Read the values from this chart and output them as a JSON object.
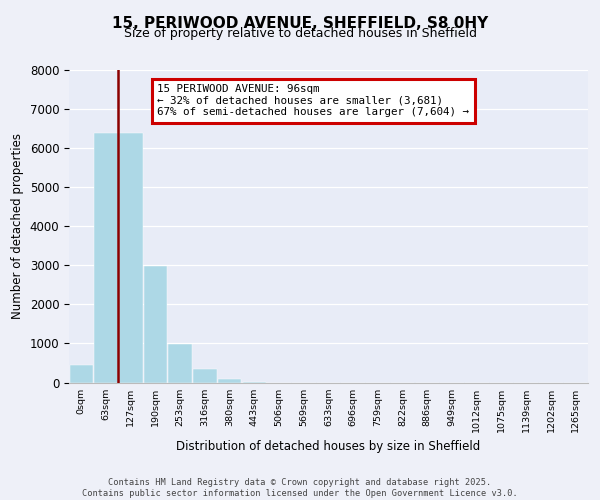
{
  "title_line1": "15, PERIWOOD AVENUE, SHEFFIELD, S8 0HY",
  "title_line2": "Size of property relative to detached houses in Sheffield",
  "xlabel": "Distribution of detached houses by size in Sheffield",
  "ylabel": "Number of detached properties",
  "bar_color": "#add8e6",
  "vline_color": "#8b0000",
  "vline_x": 1.5,
  "annotation_title": "15 PERIWOOD AVENUE: 96sqm",
  "annotation_line2": "← 32% of detached houses are smaller (3,681)",
  "annotation_line3": "67% of semi-detached houses are larger (7,604) →",
  "annotation_box_edgecolor": "#cc0000",
  "footer_line1": "Contains HM Land Registry data © Crown copyright and database right 2025.",
  "footer_line2": "Contains public sector information licensed under the Open Government Licence v3.0.",
  "bins": [
    "0sqm",
    "63sqm",
    "127sqm",
    "190sqm",
    "253sqm",
    "316sqm",
    "380sqm",
    "443sqm",
    "506sqm",
    "569sqm",
    "633sqm",
    "696sqm",
    "759sqm",
    "822sqm",
    "886sqm",
    "949sqm",
    "1012sqm",
    "1075sqm",
    "1139sqm",
    "1202sqm",
    "1265sqm"
  ],
  "values": [
    450,
    6400,
    6400,
    2980,
    980,
    340,
    80,
    20,
    0,
    0,
    0,
    0,
    0,
    0,
    0,
    0,
    0,
    0,
    0,
    0,
    0
  ],
  "ylim": [
    0,
    8000
  ],
  "yticks": [
    0,
    1000,
    2000,
    3000,
    4000,
    5000,
    6000,
    7000,
    8000
  ],
  "figure_bg": "#eef0f8",
  "plot_bg": "#e8ecf7"
}
